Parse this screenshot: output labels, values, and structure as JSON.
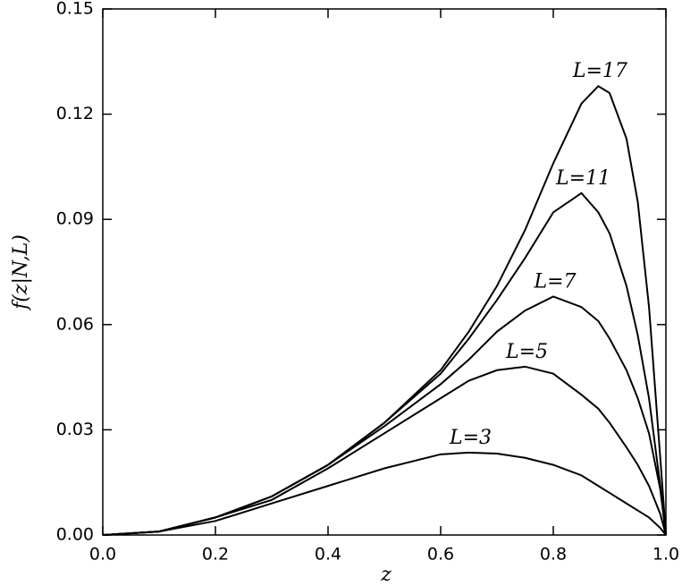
{
  "chart_data": {
    "type": "line",
    "xlabel": "z",
    "ylabel": "f(z|N,L)",
    "x": [
      0,
      0.1,
      0.2,
      0.3,
      0.4,
      0.5,
      0.6,
      0.65,
      0.7,
      0.75,
      0.8,
      0.85,
      0.88,
      0.9,
      0.93,
      0.95,
      0.97,
      0.99,
      1
    ],
    "series": [
      {
        "name": "L=17",
        "color": "#000000",
        "values": [
          0,
          0.001,
          0.005,
          0.011,
          0.02,
          0.032,
          0.047,
          0.058,
          0.071,
          0.087,
          0.106,
          0.123,
          0.128,
          0.126,
          0.113,
          0.095,
          0.065,
          0.022,
          0
        ]
      },
      {
        "name": "L=11",
        "color": "#000000",
        "values": [
          0,
          0.001,
          0.005,
          0.011,
          0.02,
          0.032,
          0.046,
          0.056,
          0.067,
          0.079,
          0.092,
          0.0975,
          0.092,
          0.086,
          0.071,
          0.057,
          0.039,
          0.014,
          0
        ]
      },
      {
        "name": "L=7",
        "color": "#000000",
        "values": [
          0,
          0.001,
          0.005,
          0.011,
          0.02,
          0.031,
          0.043,
          0.05,
          0.058,
          0.064,
          0.068,
          0.065,
          0.061,
          0.056,
          0.047,
          0.039,
          0.029,
          0.013,
          0
        ]
      },
      {
        "name": "L=5",
        "color": "#000000",
        "values": [
          0,
          0.001,
          0.005,
          0.01,
          0.019,
          0.029,
          0.039,
          0.044,
          0.047,
          0.048,
          0.046,
          0.04,
          0.036,
          0.032,
          0.025,
          0.02,
          0.014,
          0.006,
          0
        ]
      },
      {
        "name": "L=3",
        "color": "#000000",
        "values": [
          0,
          0.001,
          0.004,
          0.009,
          0.014,
          0.019,
          0.023,
          0.0235,
          0.0232,
          0.022,
          0.02,
          0.017,
          0.014,
          0.012,
          0.009,
          0.007,
          0.005,
          0.002,
          0
        ]
      }
    ],
    "xlim": [
      0,
      1
    ],
    "xticks": [
      {
        "value": 0,
        "label": "0.0"
      },
      {
        "value": 0.2,
        "label": "0.2"
      },
      {
        "value": 0.4,
        "label": "0.4"
      },
      {
        "value": 0.6,
        "label": "0.6"
      },
      {
        "value": 0.8,
        "label": "0.8"
      },
      {
        "value": 1,
        "label": "1.0"
      }
    ],
    "ylim": [
      0,
      0.15
    ],
    "yticks": [
      {
        "value": 0,
        "label": "0.00"
      },
      {
        "value": 0.03,
        "label": "0.03"
      },
      {
        "value": 0.06,
        "label": "0.06"
      },
      {
        "value": 0.09,
        "label": "0.09"
      },
      {
        "value": 0.12,
        "label": "0.12"
      },
      {
        "value": 0.15,
        "label": "0.15"
      }
    ],
    "grid": false
  }
}
